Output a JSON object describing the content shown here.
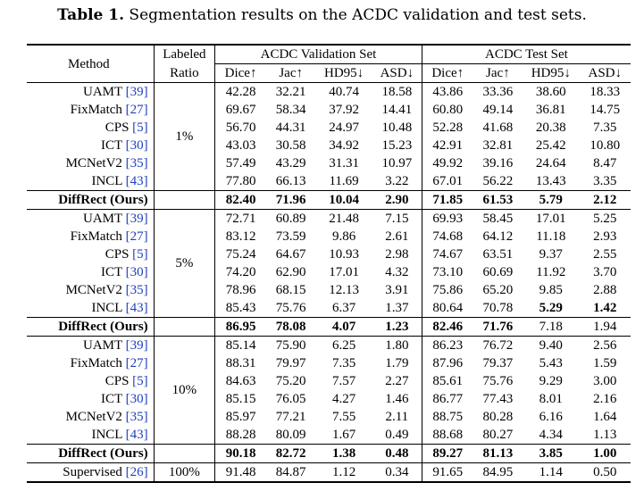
{
  "caption": {
    "label": "Table 1.",
    "text": " Segmentation results on the ACDC validation and test sets."
  },
  "header": {
    "method": "Method",
    "labeled": "Labeled",
    "ratio": "Ratio",
    "val_set": "ACDC Validation Set",
    "test_set": "ACDC Test Set",
    "metrics": [
      "Dice↑",
      "Jac↑",
      "HD95↓",
      "ASD↓"
    ]
  },
  "groups": [
    {
      "ratio": "1%",
      "rows": [
        {
          "name": "UAMT ",
          "ref": "[39]",
          "vals": [
            "42.28",
            "32.21",
            "40.74",
            "18.58",
            "43.86",
            "33.36",
            "38.60",
            "18.33"
          ],
          "bold": [
            false,
            false,
            false,
            false,
            false,
            false,
            false,
            false
          ]
        },
        {
          "name": "FixMatch ",
          "ref": "[27]",
          "vals": [
            "69.67",
            "58.34",
            "37.92",
            "14.41",
            "60.80",
            "49.14",
            "36.81",
            "14.75"
          ],
          "bold": [
            false,
            false,
            false,
            false,
            false,
            false,
            false,
            false
          ]
        },
        {
          "name": "CPS ",
          "ref": "[5]",
          "vals": [
            "56.70",
            "44.31",
            "24.97",
            "10.48",
            "52.28",
            "41.68",
            "20.38",
            "7.35"
          ],
          "bold": [
            false,
            false,
            false,
            false,
            false,
            false,
            false,
            false
          ]
        },
        {
          "name": "ICT ",
          "ref": "[30]",
          "vals": [
            "43.03",
            "30.58",
            "34.92",
            "15.23",
            "42.91",
            "32.81",
            "25.42",
            "10.80"
          ],
          "bold": [
            false,
            false,
            false,
            false,
            false,
            false,
            false,
            false
          ]
        },
        {
          "name": "MCNetV2 ",
          "ref": "[35]",
          "vals": [
            "57.49",
            "43.29",
            "31.31",
            "10.97",
            "49.92",
            "39.16",
            "24.64",
            "8.47"
          ],
          "bold": [
            false,
            false,
            false,
            false,
            false,
            false,
            false,
            false
          ]
        },
        {
          "name": "INCL ",
          "ref": "[43]",
          "vals": [
            "77.80",
            "66.13",
            "11.69",
            "3.22",
            "67.01",
            "56.22",
            "13.43",
            "3.35"
          ],
          "bold": [
            false,
            false,
            false,
            false,
            false,
            false,
            false,
            false
          ]
        },
        {
          "name": "DiffRect (Ours)",
          "ref": "",
          "vals": [
            "82.40",
            "71.96",
            "10.04",
            "2.90",
            "71.85",
            "61.53",
            "5.79",
            "2.12"
          ],
          "bold": [
            true,
            true,
            true,
            true,
            true,
            true,
            true,
            true
          ],
          "ours": true
        }
      ]
    },
    {
      "ratio": "5%",
      "rows": [
        {
          "name": "UAMT ",
          "ref": "[39]",
          "vals": [
            "72.71",
            "60.89",
            "21.48",
            "7.15",
            "69.93",
            "58.45",
            "17.01",
            "5.25"
          ],
          "bold": [
            false,
            false,
            false,
            false,
            false,
            false,
            false,
            false
          ]
        },
        {
          "name": "FixMatch ",
          "ref": "[27]",
          "vals": [
            "83.12",
            "73.59",
            "9.86",
            "2.61",
            "74.68",
            "64.12",
            "11.18",
            "2.93"
          ],
          "bold": [
            false,
            false,
            false,
            false,
            false,
            false,
            false,
            false
          ]
        },
        {
          "name": "CPS ",
          "ref": "[5]",
          "vals": [
            "75.24",
            "64.67",
            "10.93",
            "2.98",
            "74.67",
            "63.51",
            "9.37",
            "2.55"
          ],
          "bold": [
            false,
            false,
            false,
            false,
            false,
            false,
            false,
            false
          ]
        },
        {
          "name": "ICT ",
          "ref": "[30]",
          "vals": [
            "74.20",
            "62.90",
            "17.01",
            "4.32",
            "73.10",
            "60.69",
            "11.92",
            "3.70"
          ],
          "bold": [
            false,
            false,
            false,
            false,
            false,
            false,
            false,
            false
          ]
        },
        {
          "name": "MCNetV2 ",
          "ref": "[35]",
          "vals": [
            "78.96",
            "68.15",
            "12.13",
            "3.91",
            "75.86",
            "65.20",
            "9.85",
            "2.88"
          ],
          "bold": [
            false,
            false,
            false,
            false,
            false,
            false,
            false,
            false
          ]
        },
        {
          "name": "INCL ",
          "ref": "[43]",
          "vals": [
            "85.43",
            "75.76",
            "6.37",
            "1.37",
            "80.64",
            "70.78",
            "5.29",
            "1.42"
          ],
          "bold": [
            false,
            false,
            false,
            false,
            false,
            false,
            true,
            true
          ]
        },
        {
          "name": "DiffRect (Ours)",
          "ref": "",
          "vals": [
            "86.95",
            "78.08",
            "4.07",
            "1.23",
            "82.46",
            "71.76",
            "7.18",
            "1.94"
          ],
          "bold": [
            true,
            true,
            true,
            true,
            true,
            true,
            false,
            false
          ],
          "ours": true
        }
      ]
    },
    {
      "ratio": "10%",
      "rows": [
        {
          "name": "UAMT ",
          "ref": "[39]",
          "vals": [
            "85.14",
            "75.90",
            "6.25",
            "1.80",
            "86.23",
            "76.72",
            "9.40",
            "2.56"
          ],
          "bold": [
            false,
            false,
            false,
            false,
            false,
            false,
            false,
            false
          ]
        },
        {
          "name": "FixMatch ",
          "ref": "[27]",
          "vals": [
            "88.31",
            "79.97",
            "7.35",
            "1.79",
            "87.96",
            "79.37",
            "5.43",
            "1.59"
          ],
          "bold": [
            false,
            false,
            false,
            false,
            false,
            false,
            false,
            false
          ]
        },
        {
          "name": "CPS ",
          "ref": "[5]",
          "vals": [
            "84.63",
            "75.20",
            "7.57",
            "2.27",
            "85.61",
            "75.76",
            "9.29",
            "3.00"
          ],
          "bold": [
            false,
            false,
            false,
            false,
            false,
            false,
            false,
            false
          ]
        },
        {
          "name": "ICT ",
          "ref": "[30]",
          "vals": [
            "85.15",
            "76.05",
            "4.27",
            "1.46",
            "86.77",
            "77.43",
            "8.01",
            "2.16"
          ],
          "bold": [
            false,
            false,
            false,
            false,
            false,
            false,
            false,
            false
          ]
        },
        {
          "name": "MCNetV2 ",
          "ref": "[35]",
          "vals": [
            "85.97",
            "77.21",
            "7.55",
            "2.11",
            "88.75",
            "80.28",
            "6.16",
            "1.64"
          ],
          "bold": [
            false,
            false,
            false,
            false,
            false,
            false,
            false,
            false
          ]
        },
        {
          "name": "INCL ",
          "ref": "[43]",
          "vals": [
            "88.28",
            "80.09",
            "1.67",
            "0.49",
            "88.68",
            "80.27",
            "4.34",
            "1.13"
          ],
          "bold": [
            false,
            false,
            false,
            false,
            false,
            false,
            false,
            false
          ]
        },
        {
          "name": "DiffRect (Ours)",
          "ref": "",
          "vals": [
            "90.18",
            "82.72",
            "1.38",
            "0.48",
            "89.27",
            "81.13",
            "3.85",
            "1.00"
          ],
          "bold": [
            true,
            true,
            true,
            true,
            true,
            true,
            true,
            true
          ],
          "ours": true
        }
      ]
    }
  ],
  "supervised": {
    "name": "Supervised ",
    "ref": "[26]",
    "ratio": "100%",
    "vals": [
      "91.48",
      "84.87",
      "1.12",
      "0.34",
      "91.65",
      "84.95",
      "1.14",
      "0.50"
    ]
  }
}
